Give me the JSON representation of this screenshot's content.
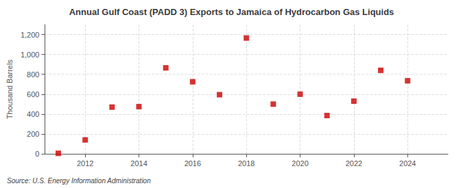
{
  "chart_data": {
    "type": "scatter",
    "title": "Annual Gulf Coast (PADD 3) Exports to Jamaica of Hydrocarbon Gas Liquids",
    "ylabel": "Thousand Barrels",
    "source": "Source: U.S. Energy Information Administration",
    "x": [
      2011,
      2012,
      2013,
      2014,
      2015,
      2016,
      2017,
      2018,
      2019,
      2020,
      2021,
      2022,
      2023,
      2024
    ],
    "values": [
      5,
      140,
      470,
      475,
      865,
      725,
      595,
      1165,
      500,
      600,
      385,
      530,
      840,
      735
    ],
    "color": "#cc0000",
    "marker": "square",
    "xlim": [
      2010.5,
      2025.5
    ],
    "xticks": [
      2012,
      2014,
      2016,
      2018,
      2020,
      2022,
      2024
    ],
    "ylim": [
      0,
      1300
    ],
    "yticks": [
      0,
      200,
      400,
      600,
      {
        "value": 1000,
        "label": "1,000"
      },
      {
        "value": 1200,
        "label": "1,200"
      },
      800
    ],
    "grid": true
  }
}
